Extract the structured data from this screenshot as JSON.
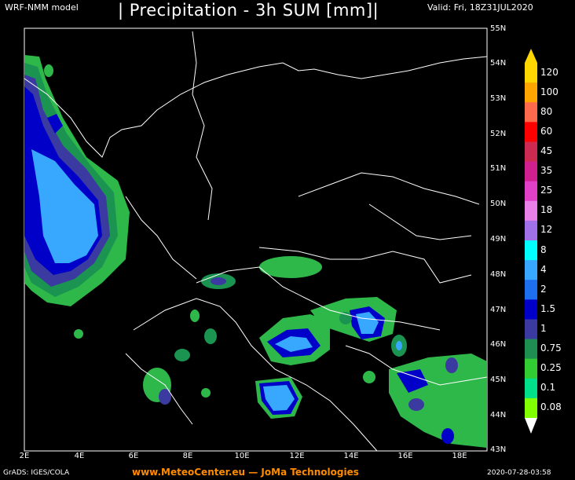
{
  "header": {
    "model": "WRF-NMM model",
    "title": "| Precipitation - 3h SUM [mm]|",
    "valid": "Valid: Fri, 18Z31JUL2020"
  },
  "footer": {
    "credits": "GrADS: IGES/COLA",
    "brand": "www.MeteoCenter.eu  — JoMa Technologies",
    "timestamp": "2020-07-28-03:58"
  },
  "axes": {
    "lat_labels": [
      "55N",
      "54N",
      "53N",
      "52N",
      "51N",
      "50N",
      "49N",
      "48N",
      "47N",
      "46N",
      "45N",
      "44N",
      "43N"
    ],
    "lon_labels": [
      "2E",
      "4E",
      "6E",
      "8E",
      "10E",
      "12E",
      "14E",
      "16E",
      "18E"
    ]
  },
  "legend": {
    "labels": [
      "120",
      "100",
      "80",
      "60",
      "45",
      "35",
      "25",
      "18",
      "12",
      "8",
      "4",
      "2",
      "1.5",
      "1",
      "0.75",
      "0.25",
      "0.1",
      "0.08"
    ],
    "colors": [
      "#ffd700",
      "#ffa500",
      "#ff6a4d",
      "#ff0000",
      "#cc2a50",
      "#d0208f",
      "#e040c8",
      "#e880e8",
      "#a070e8",
      "#00ffff",
      "#38a8ff",
      "#1e6ef0",
      "#0000c8",
      "#3a3aa0",
      "#1e8f50",
      "#32cd32",
      "#00e08a",
      "#80ff00"
    ]
  }
}
